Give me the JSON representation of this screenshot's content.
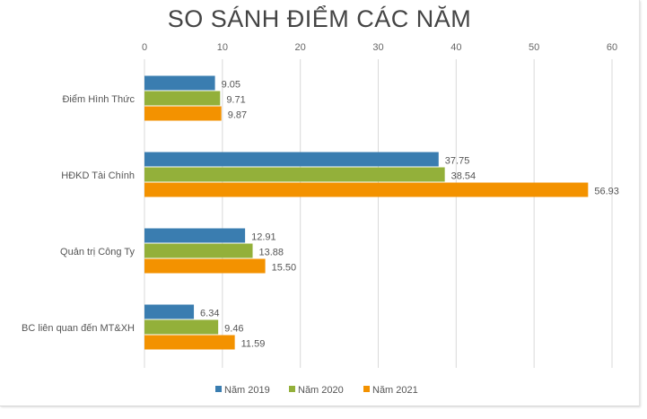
{
  "chart_data": {
    "type": "bar",
    "orientation": "horizontal",
    "title": "SO SÁNH ĐIỂM CÁC NĂM",
    "categories": [
      "Điểm Hình Thức",
      "HĐKD Tài Chính",
      "Quản trị Công Ty",
      "BC liên quan đến MT&XH"
    ],
    "series": [
      {
        "name": "Năm 2019",
        "color": "#3a7db0",
        "values": [
          9.05,
          37.75,
          12.91,
          6.34
        ],
        "labels": [
          "9.05",
          "37.75",
          "12.91",
          "6.34"
        ]
      },
      {
        "name": "Năm 2020",
        "color": "#93b03a",
        "values": [
          9.71,
          38.54,
          13.88,
          9.46
        ],
        "labels": [
          "9.71",
          "38.54",
          "13.88",
          "9.46"
        ]
      },
      {
        "name": "Năm 2021",
        "color": "#f39200",
        "values": [
          9.87,
          56.93,
          15.5,
          11.59
        ],
        "labels": [
          "9.87",
          "56.93",
          "15.50",
          "11.59"
        ]
      }
    ],
    "xlim": [
      0,
      60
    ],
    "xticks": [
      "0",
      "10",
      "20",
      "30",
      "40",
      "50",
      "60"
    ],
    "xaxis_position": "top",
    "grid": true,
    "legend": "bottom"
  }
}
